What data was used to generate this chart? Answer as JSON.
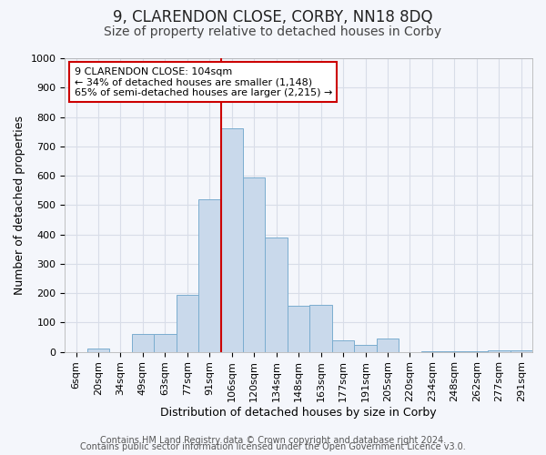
{
  "title": "9, CLARENDON CLOSE, CORBY, NN18 8DQ",
  "subtitle": "Size of property relative to detached houses in Corby",
  "xlabel": "Distribution of detached houses by size in Corby",
  "ylabel": "Number of detached properties",
  "categories": [
    "6sqm",
    "20sqm",
    "34sqm",
    "49sqm",
    "63sqm",
    "77sqm",
    "91sqm",
    "106sqm",
    "120sqm",
    "134sqm",
    "148sqm",
    "163sqm",
    "177sqm",
    "191sqm",
    "205sqm",
    "220sqm",
    "234sqm",
    "248sqm",
    "262sqm",
    "277sqm",
    "291sqm"
  ],
  "values": [
    0,
    12,
    0,
    60,
    60,
    195,
    520,
    760,
    595,
    390,
    157,
    160,
    40,
    25,
    45,
    0,
    3,
    3,
    3,
    5,
    5
  ],
  "bar_color": "#c9d9eb",
  "bar_edge_color": "#7aadcf",
  "vline_x_index": 7,
  "vline_color": "#cc0000",
  "annotation_text": "9 CLARENDON CLOSE: 104sqm\n← 34% of detached houses are smaller (1,148)\n65% of semi-detached houses are larger (2,215) →",
  "annotation_box_color": "#ffffff",
  "annotation_box_edge_color": "#cc0000",
  "ylim": [
    0,
    1000
  ],
  "yticks": [
    0,
    100,
    200,
    300,
    400,
    500,
    600,
    700,
    800,
    900,
    1000
  ],
  "footer1": "Contains HM Land Registry data © Crown copyright and database right 2024.",
  "footer2": "Contains public sector information licensed under the Open Government Licence v3.0.",
  "background_color": "#f4f6fb",
  "grid_color": "#d8dde8",
  "title_fontsize": 12,
  "subtitle_fontsize": 10,
  "label_fontsize": 9,
  "tick_fontsize": 8,
  "annotation_fontsize": 8,
  "footer_fontsize": 7
}
